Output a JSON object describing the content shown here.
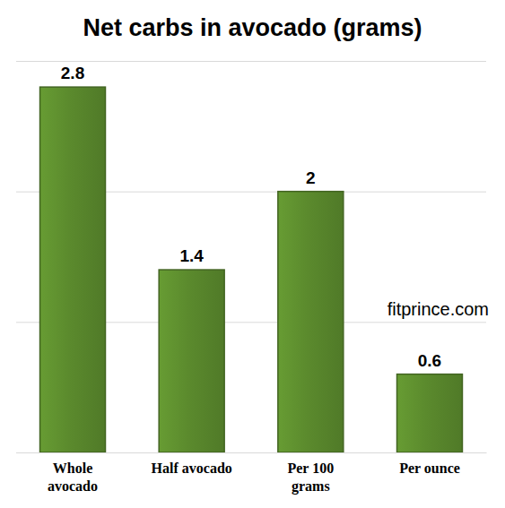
{
  "chart_data": {
    "type": "bar",
    "title": "Net carbs in avocado (grams)",
    "categories": [
      "Whole avocado",
      "Half avocado",
      "Per 100 grams",
      "Per ounce"
    ],
    "values": [
      2.8,
      1.4,
      2,
      0.6
    ],
    "color": "#5b8a2d",
    "ylim": [
      0,
      3
    ],
    "yticks": [
      0,
      1,
      2,
      3
    ],
    "grid": true,
    "data_labels": true,
    "tick_labels": "x",
    "annotation": "fitprince.com"
  }
}
